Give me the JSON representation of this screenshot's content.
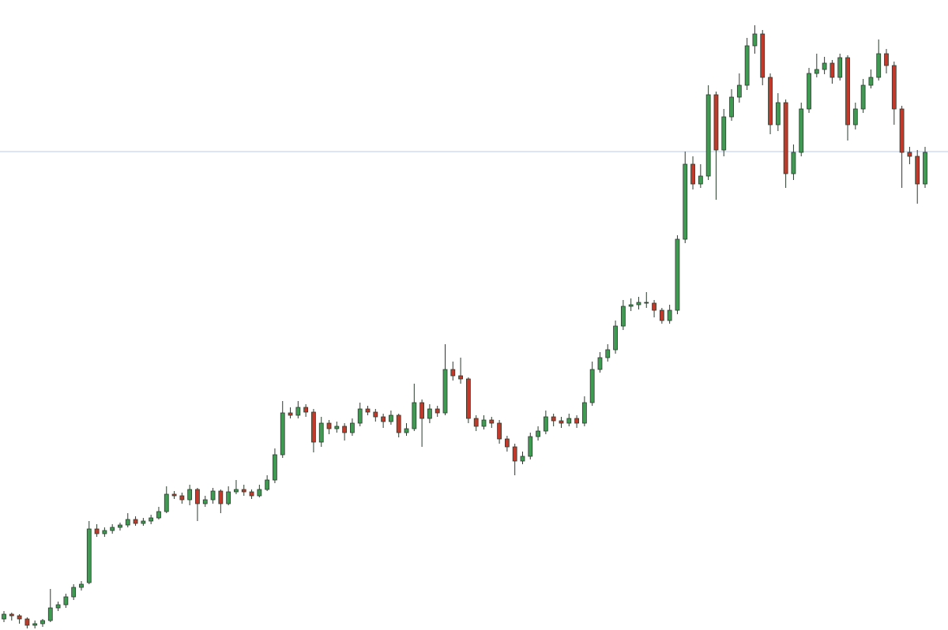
{
  "chart_data": {
    "type": "candlestick",
    "ylim": [
      0,
      798
    ],
    "up_color": "#3f9a52",
    "down_color": "#c0392b",
    "outline_color": "#2b3b2e",
    "hline": 606,
    "hline_color": "#b9c9ef",
    "ohlc": [
      [
        14,
        24,
        10,
        20
      ],
      [
        20,
        22,
        12,
        18
      ],
      [
        18,
        20,
        8,
        14
      ],
      [
        14,
        16,
        2,
        6
      ],
      [
        6,
        12,
        2,
        8
      ],
      [
        8,
        14,
        4,
        12
      ],
      [
        12,
        52,
        10,
        28
      ],
      [
        28,
        36,
        24,
        32
      ],
      [
        32,
        46,
        28,
        42
      ],
      [
        42,
        58,
        38,
        54
      ],
      [
        54,
        62,
        50,
        58
      ],
      [
        60,
        138,
        58,
        128
      ],
      [
        128,
        134,
        118,
        122
      ],
      [
        122,
        130,
        118,
        126
      ],
      [
        126,
        134,
        122,
        130
      ],
      [
        130,
        136,
        126,
        133
      ],
      [
        133,
        148,
        130,
        140
      ],
      [
        140,
        144,
        132,
        135
      ],
      [
        135,
        142,
        132,
        138
      ],
      [
        138,
        146,
        134,
        142
      ],
      [
        142,
        156,
        140,
        150
      ],
      [
        150,
        182,
        148,
        172
      ],
      [
        172,
        176,
        166,
        170
      ],
      [
        170,
        174,
        160,
        165
      ],
      [
        165,
        184,
        158,
        178
      ],
      [
        178,
        180,
        138,
        160
      ],
      [
        160,
        170,
        156,
        165
      ],
      [
        165,
        180,
        160,
        176
      ],
      [
        176,
        178,
        148,
        160
      ],
      [
        160,
        182,
        158,
        175
      ],
      [
        175,
        190,
        172,
        178
      ],
      [
        178,
        184,
        170,
        175
      ],
      [
        175,
        178,
        166,
        170
      ],
      [
        170,
        184,
        168,
        178
      ],
      [
        178,
        196,
        176,
        190
      ],
      [
        190,
        230,
        186,
        222
      ],
      [
        222,
        290,
        218,
        275
      ],
      [
        275,
        282,
        268,
        272
      ],
      [
        272,
        290,
        268,
        282
      ],
      [
        282,
        286,
        270,
        276
      ],
      [
        276,
        280,
        225,
        238
      ],
      [
        238,
        270,
        232,
        262
      ],
      [
        262,
        266,
        248,
        255
      ],
      [
        255,
        264,
        250,
        258
      ],
      [
        258,
        262,
        240,
        250
      ],
      [
        250,
        268,
        246,
        262
      ],
      [
        262,
        288,
        258,
        280
      ],
      [
        280,
        284,
        272,
        276
      ],
      [
        276,
        280,
        264,
        270
      ],
      [
        270,
        274,
        256,
        264
      ],
      [
        264,
        278,
        260,
        272
      ],
      [
        272,
        274,
        244,
        250
      ],
      [
        250,
        262,
        246,
        255
      ],
      [
        255,
        312,
        252,
        288
      ],
      [
        288,
        292,
        232,
        268
      ],
      [
        268,
        286,
        262,
        280
      ],
      [
        280,
        284,
        270,
        275
      ],
      [
        275,
        362,
        272,
        330
      ],
      [
        330,
        340,
        316,
        322
      ],
      [
        322,
        345,
        312,
        318
      ],
      [
        318,
        320,
        262,
        268
      ],
      [
        268,
        272,
        252,
        258
      ],
      [
        258,
        272,
        254,
        266
      ],
      [
        266,
        270,
        256,
        262
      ],
      [
        262,
        266,
        236,
        242
      ],
      [
        242,
        246,
        226,
        232
      ],
      [
        232,
        236,
        196,
        214
      ],
      [
        214,
        226,
        210,
        220
      ],
      [
        220,
        250,
        216,
        245
      ],
      [
        245,
        258,
        240,
        252
      ],
      [
        252,
        278,
        248,
        270
      ],
      [
        270,
        274,
        258,
        265
      ],
      [
        265,
        270,
        256,
        262
      ],
      [
        262,
        274,
        258,
        268
      ],
      [
        268,
        272,
        256,
        262
      ],
      [
        262,
        296,
        258,
        288
      ],
      [
        288,
        340,
        284,
        330
      ],
      [
        330,
        352,
        326,
        345
      ],
      [
        345,
        362,
        340,
        355
      ],
      [
        355,
        392,
        350,
        385
      ],
      [
        385,
        418,
        380,
        410
      ],
      [
        410,
        420,
        404,
        412
      ],
      [
        412,
        422,
        406,
        415
      ],
      [
        415,
        428,
        408,
        414
      ],
      [
        414,
        418,
        396,
        405
      ],
      [
        405,
        408,
        388,
        392
      ],
      [
        392,
        412,
        388,
        405
      ],
      [
        405,
        500,
        400,
        495
      ],
      [
        495,
        606,
        490,
        590
      ],
      [
        590,
        600,
        558,
        565
      ],
      [
        565,
        590,
        560,
        575
      ],
      [
        575,
        690,
        570,
        678
      ],
      [
        678,
        682,
        545,
        608
      ],
      [
        608,
        660,
        600,
        650
      ],
      [
        650,
        685,
        645,
        675
      ],
      [
        675,
        705,
        668,
        690
      ],
      [
        690,
        750,
        684,
        740
      ],
      [
        740,
        766,
        730,
        755
      ],
      [
        755,
        760,
        690,
        700
      ],
      [
        700,
        705,
        628,
        640
      ],
      [
        640,
        680,
        632,
        668
      ],
      [
        668,
        672,
        560,
        578
      ],
      [
        578,
        615,
        570,
        605
      ],
      [
        605,
        668,
        600,
        660
      ],
      [
        660,
        712,
        655,
        705
      ],
      [
        705,
        730,
        700,
        710
      ],
      [
        710,
        726,
        704,
        718
      ],
      [
        718,
        722,
        692,
        700
      ],
      [
        700,
        730,
        696,
        725
      ],
      [
        725,
        728,
        620,
        640
      ],
      [
        640,
        668,
        634,
        660
      ],
      [
        660,
        698,
        655,
        690
      ],
      [
        690,
        710,
        686,
        700
      ],
      [
        700,
        748,
        696,
        730
      ],
      [
        730,
        736,
        705,
        715
      ],
      [
        715,
        720,
        640,
        660
      ],
      [
        660,
        664,
        560,
        605
      ],
      [
        605,
        612,
        590,
        600
      ],
      [
        600,
        608,
        540,
        565
      ],
      [
        565,
        612,
        560,
        605
      ]
    ]
  }
}
